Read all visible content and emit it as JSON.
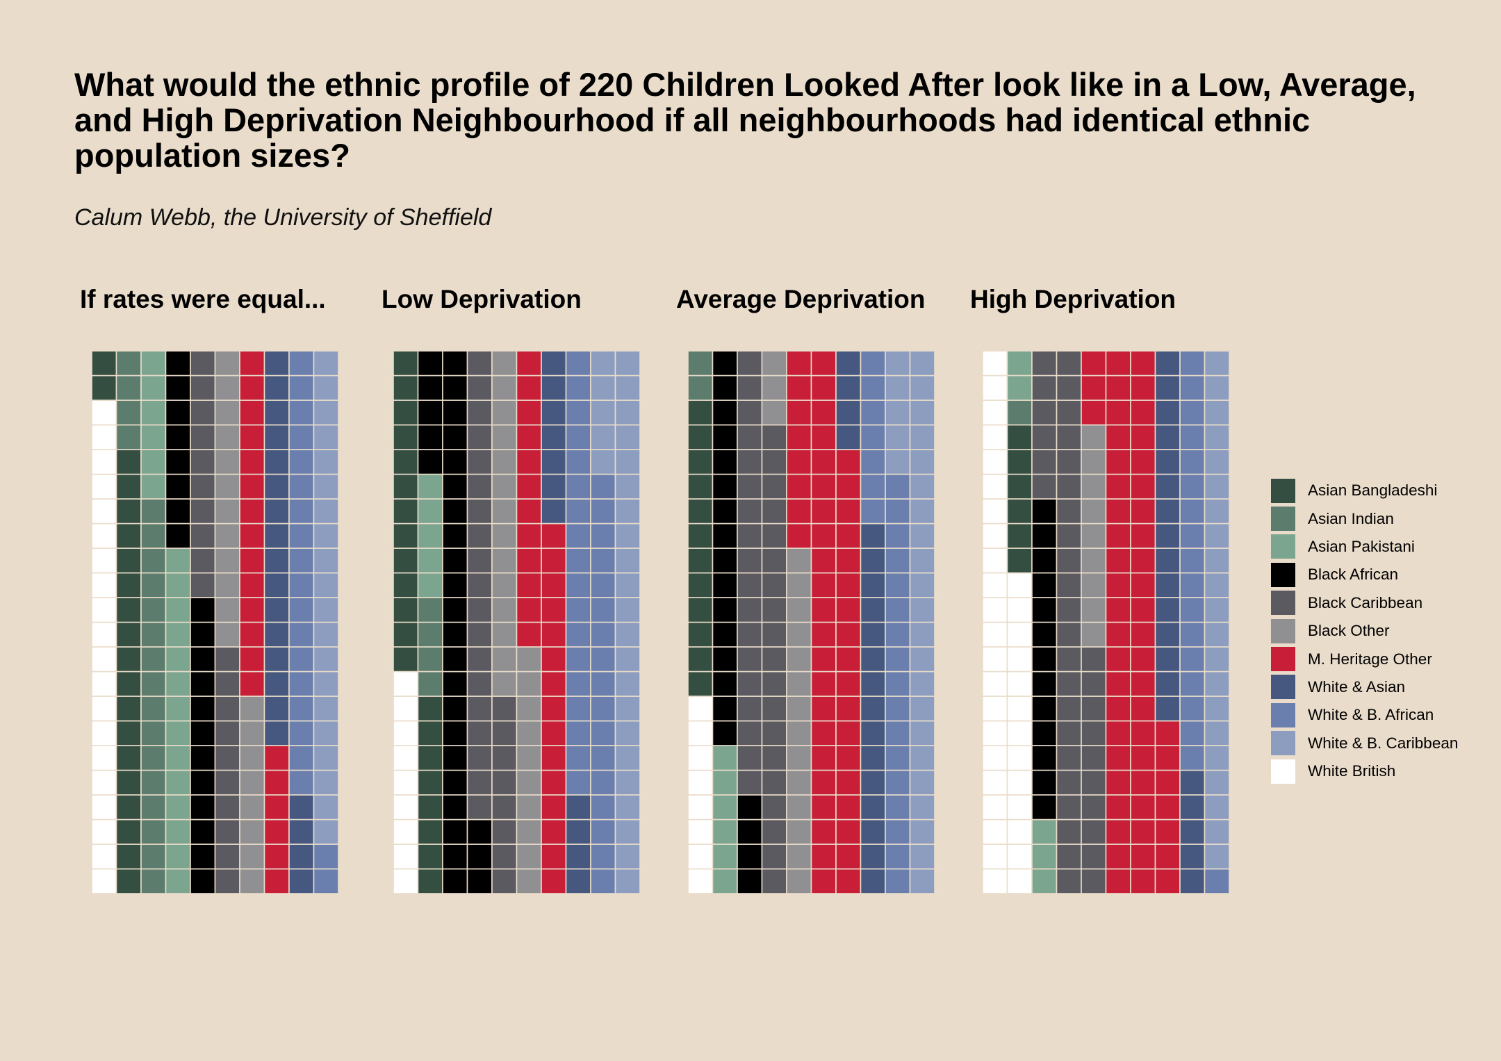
{
  "title": "What would the ethnic profile of 220 Children Looked After look like in a Low, Average, and High Deprivation Neighbourhood if all neighbourhoods had identical ethnic population sizes?",
  "subtitle": "Calum Webb, the University of Sheffield",
  "legend": [
    {
      "label": "Asian Bangladeshi",
      "color": "#344E41"
    },
    {
      "label": "Asian Indian",
      "color": "#5C7D6D"
    },
    {
      "label": "Asian Pakistani",
      "color": "#7CA58F"
    },
    {
      "label": "Black African",
      "color": "#000000"
    },
    {
      "label": "Black Caribbean",
      "color": "#5A5A60"
    },
    {
      "label": "Black Other",
      "color": "#908F92"
    },
    {
      "label": "M. Heritage Other",
      "color": "#C81E38"
    },
    {
      "label": "White & Asian",
      "color": "#465880"
    },
    {
      "label": "White & B. African",
      "color": "#6A7FAE"
    },
    {
      "label": "White & B. Caribbean",
      "color": "#8C9DC0"
    },
    {
      "label": "White British",
      "color": "#FFFFFF"
    }
  ],
  "chart_data": {
    "type": "waffle",
    "total": 220,
    "grid": {
      "columns": 10,
      "rows": 22
    },
    "fill_order": "bottom-to-top, left-to-right",
    "panels": [
      {
        "title": "If rates were equal...",
        "counts": {
          "White British": 20,
          "Asian Bangladeshi": 20,
          "Asian Indian": 20,
          "Asian Pakistani": 20,
          "Black African": 20,
          "Black Caribbean": 20,
          "Black Other": 20,
          "M. Heritage Other": 20,
          "White & Asian": 20,
          "White & B. African": 20,
          "White & B. Caribbean": 20
        }
      },
      {
        "title": "Low Deprivation",
        "counts": {
          "White British": 9,
          "Asian Bangladeshi": 21,
          "Asian Indian": 4,
          "Asian Pakistani": 5,
          "Black African": 30,
          "Black Caribbean": 27,
          "Black Other": 24,
          "M. Heritage Other": 27,
          "White & Asian": 11,
          "White & B. African": 35,
          "White & B. Caribbean": 27
        }
      },
      {
        "title": "Average Deprivation",
        "counts": {
          "White British": 8,
          "Asian Bangladeshi": 12,
          "Asian Indian": 2,
          "Asian Pakistani": 6,
          "Black African": 20,
          "Black Caribbean": 37,
          "Black Other": 17,
          "M. Heritage Other": 48,
          "White & Asian": 19,
          "White & B. African": 24,
          "White & B. Caribbean": 27
        }
      },
      {
        "title": "High Deprivation",
        "counts": {
          "White British": 35,
          "Asian Bangladeshi": 6,
          "Asian Indian": 1,
          "Asian Pakistani": 5,
          "Black African": 13,
          "Black Caribbean": 38,
          "Black Other": 9,
          "M. Heritage Other": 54,
          "White & Asian": 20,
          "White & B. African": 18,
          "White & B. Caribbean": 21
        }
      }
    ]
  }
}
